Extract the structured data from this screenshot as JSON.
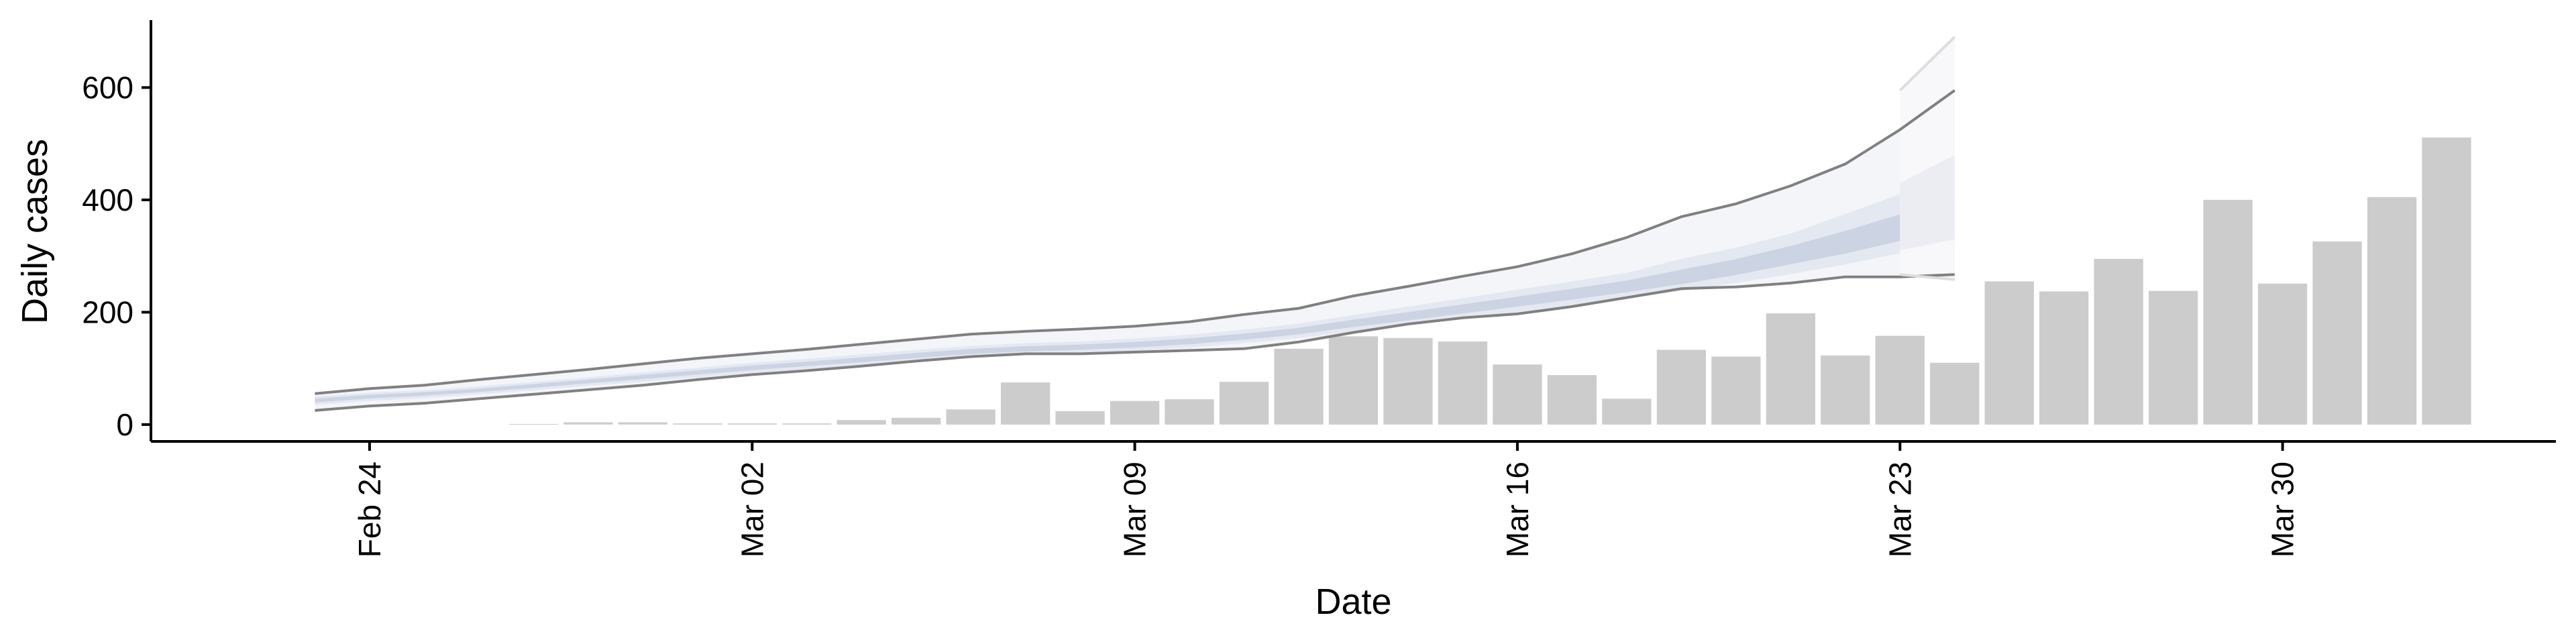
{
  "chart_data": {
    "type": "bar",
    "title": "",
    "xlabel": "Date",
    "ylabel": "Daily cases",
    "ylim": [
      -30,
      720
    ],
    "yticks": [
      0,
      200,
      400,
      600
    ],
    "x_date_ticks": [
      {
        "date": "2020-02-24",
        "label": "Feb 24"
      },
      {
        "date": "2020-03-02",
        "label": "Mar 02"
      },
      {
        "date": "2020-03-09",
        "label": "Mar 09"
      },
      {
        "date": "2020-03-16",
        "label": "Mar 16"
      },
      {
        "date": "2020-03-23",
        "label": "Mar 23"
      },
      {
        "date": "2020-03-30",
        "label": "Mar 30"
      }
    ],
    "xlim": [
      "2020-02-20",
      "2020-04-04"
    ],
    "grid": false,
    "legend": "none",
    "colors": {
      "bars": "#cccccc",
      "band_inner": "#ccd3e3",
      "band_middle": "#e4e8f1",
      "band_outer": "#f4f5f9",
      "outer_lines": "#808080"
    },
    "observed_cases": {
      "dates": [
        "2020-02-27",
        "2020-02-28",
        "2020-02-29",
        "2020-03-01",
        "2020-03-02",
        "2020-03-03",
        "2020-03-04",
        "2020-03-05",
        "2020-03-06",
        "2020-03-07",
        "2020-03-08",
        "2020-03-09",
        "2020-03-10",
        "2020-03-11",
        "2020-03-12",
        "2020-03-13",
        "2020-03-14",
        "2020-03-15",
        "2020-03-16",
        "2020-03-17",
        "2020-03-18",
        "2020-03-19",
        "2020-03-20",
        "2020-03-21",
        "2020-03-22",
        "2020-03-23",
        "2020-03-24",
        "2020-03-25",
        "2020-03-26",
        "2020-03-27",
        "2020-03-28",
        "2020-03-29",
        "2020-03-30",
        "2020-03-31",
        "2020-04-01",
        "2020-04-02",
        "2020-04-03"
      ],
      "values": [
        1,
        4,
        4,
        2,
        2,
        2,
        8,
        12,
        27,
        75,
        24,
        42,
        45,
        76,
        135,
        157,
        154,
        148,
        107,
        88,
        46,
        133,
        121,
        198,
        123,
        158,
        110,
        255,
        237,
        295,
        238,
        400,
        251,
        326,
        405,
        511,
        0
      ]
    },
    "nowcast": {
      "dates": [
        "2020-02-23",
        "2020-02-24",
        "2020-02-25",
        "2020-02-26",
        "2020-02-27",
        "2020-02-28",
        "2020-02-29",
        "2020-03-01",
        "2020-03-02",
        "2020-03-03",
        "2020-03-04",
        "2020-03-05",
        "2020-03-06",
        "2020-03-07",
        "2020-03-08",
        "2020-03-09",
        "2020-03-10",
        "2020-03-11",
        "2020-03-12",
        "2020-03-13",
        "2020-03-14",
        "2020-03-15",
        "2020-03-16",
        "2020-03-17",
        "2020-03-18",
        "2020-03-19",
        "2020-03-20",
        "2020-03-21",
        "2020-03-22",
        "2020-03-23",
        "2020-03-24"
      ],
      "upper_90": [
        55,
        64,
        70,
        80,
        89,
        98,
        108,
        118,
        126,
        134,
        143,
        152,
        161,
        166,
        170,
        175,
        183,
        196,
        207,
        229,
        246,
        264,
        281,
        304,
        333,
        370,
        393,
        425,
        464,
        525,
        595
      ],
      "upper_50": [
        50,
        57,
        61,
        68,
        76,
        84,
        93,
        101,
        110,
        117,
        125,
        133,
        140,
        145,
        148,
        153,
        160,
        169,
        180,
        195,
        210,
        225,
        240,
        255,
        270,
        295,
        315,
        340,
        375,
        410,
        445
      ],
      "median": [
        43,
        50,
        55,
        61,
        69,
        77,
        85,
        93,
        101,
        108,
        115,
        123,
        130,
        135,
        138,
        142,
        148,
        156,
        166,
        180,
        192,
        205,
        218,
        231,
        245,
        260,
        278,
        300,
        320,
        345,
        370
      ],
      "lower_50": [
        35,
        42,
        47,
        54,
        61,
        69,
        76,
        84,
        92,
        99,
        106,
        113,
        120,
        124,
        127,
        131,
        137,
        145,
        154,
        166,
        177,
        189,
        200,
        212,
        224,
        238,
        252,
        268,
        285,
        305,
        320
      ],
      "lower_90": [
        25,
        33,
        38,
        46,
        54,
        62,
        70,
        80,
        89,
        96,
        104,
        113,
        121,
        126,
        126,
        129,
        132,
        135,
        147,
        164,
        179,
        190,
        197,
        210,
        226,
        242,
        245,
        252,
        263,
        263,
        267
      ]
    },
    "forecast": {
      "dates": [
        "2020-03-23",
        "2020-03-24"
      ],
      "upper_90": [
        595,
        690
      ],
      "upper_50": [
        430,
        480
      ],
      "lower_50": [
        310,
        330
      ],
      "lower_90": [
        267,
        258
      ]
    }
  }
}
